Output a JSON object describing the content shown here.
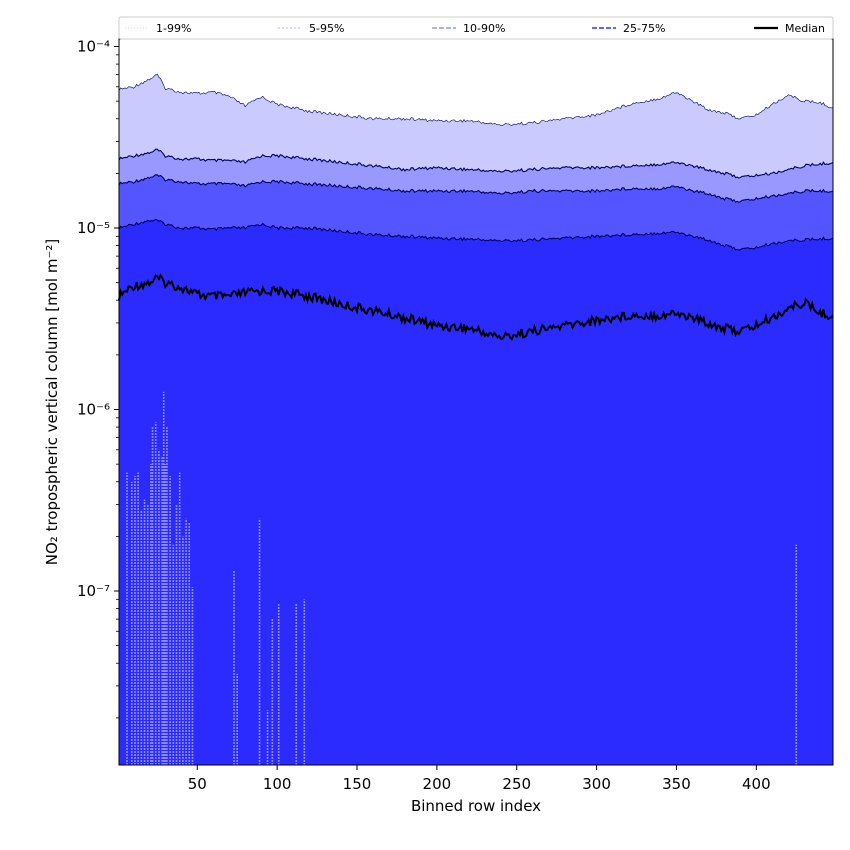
{
  "chart_data": {
    "type": "area",
    "xlabel": "Binned row index",
    "ylabel": "NO₂ tropospheric vertical column [mol m⁻²]",
    "yscale": "log",
    "xlim": [
      1,
      448
    ],
    "ylim": [
      1.1e-08,
      0.00011
    ],
    "x_ticks": [
      50,
      100,
      150,
      200,
      250,
      300,
      350,
      400
    ],
    "x_tick_labels": [
      "50",
      "100",
      "150",
      "200",
      "250",
      "300",
      "350",
      "400"
    ],
    "y_ticks": [
      1e-07,
      1e-06,
      1e-05,
      0.0001
    ],
    "y_tick_labels": [
      "10⁻⁷",
      "10⁻⁶",
      "10⁻⁵",
      "10⁻⁴"
    ],
    "grid": false,
    "legend_position": "top",
    "legend": [
      {
        "label": "1-99%",
        "style": "thin-dotted",
        "color": "#c8c8ff"
      },
      {
        "label": "5-95%",
        "style": "thin-dashed",
        "color": "#9999ff"
      },
      {
        "label": "10-90%",
        "style": "dashed",
        "color": "#7f7fff"
      },
      {
        "label": "25-75%",
        "style": "dashed",
        "color": "#3333ff"
      },
      {
        "label": "Median",
        "style": "solid",
        "color": "#000000"
      }
    ],
    "colors": {
      "band_1_99": "#2b2bff",
      "band_5_95": "#5555ff",
      "band_10_90": "#9898ff",
      "band_25_75": "#cacaff",
      "outer_fill": "#2b2bff",
      "median_line": "#000000",
      "band_edge": "#00005e",
      "low_spikes": "#8c8cff"
    },
    "x": [
      1,
      10,
      20,
      25,
      30,
      40,
      50,
      60,
      70,
      80,
      90,
      100,
      120,
      140,
      160,
      180,
      200,
      220,
      240,
      260,
      280,
      300,
      320,
      340,
      350,
      360,
      370,
      380,
      390,
      400,
      410,
      420,
      430,
      440,
      448
    ],
    "series": [
      {
        "name": "1-99%",
        "upper": [
          5.8e-05,
          6e-05,
          6.6e-05,
          7e-05,
          5.9e-05,
          5.6e-05,
          5.5e-05,
          5.6e-05,
          5.3e-05,
          4.7e-05,
          5.3e-05,
          4.8e-05,
          4.4e-05,
          4.2e-05,
          4e-05,
          4e-05,
          3.9e-05,
          3.9e-05,
          3.7e-05,
          3.8e-05,
          4e-05,
          4.2e-05,
          4.8e-05,
          5.2e-05,
          5.6e-05,
          5e-05,
          4.5e-05,
          4.3e-05,
          4e-05,
          4.2e-05,
          4.8e-05,
          5.4e-05,
          5e-05,
          4.9e-05,
          4.6e-05
        ]
      },
      {
        "name": "5-95%",
        "upper": [
          2.4e-05,
          2.5e-05,
          2.6e-05,
          2.7e-05,
          2.5e-05,
          2.4e-05,
          2.4e-05,
          2.35e-05,
          2.35e-05,
          2.3e-05,
          2.5e-05,
          2.5e-05,
          2.4e-05,
          2.3e-05,
          2.2e-05,
          2.1e-05,
          2.15e-05,
          2.1e-05,
          2.05e-05,
          2.1e-05,
          2.15e-05,
          2.15e-05,
          2.2e-05,
          2.25e-05,
          2.3e-05,
          2.2e-05,
          2.1e-05,
          2e-05,
          1.9e-05,
          1.95e-05,
          2e-05,
          2.1e-05,
          2.2e-05,
          2.25e-05,
          2.3e-05
        ]
      },
      {
        "name": "10-90%",
        "upper": [
          1.75e-05,
          1.8e-05,
          1.9e-05,
          1.95e-05,
          1.85e-05,
          1.8e-05,
          1.75e-05,
          1.75e-05,
          1.75e-05,
          1.7e-05,
          1.8e-05,
          1.8e-05,
          1.75e-05,
          1.7e-05,
          1.65e-05,
          1.6e-05,
          1.6e-05,
          1.6e-05,
          1.55e-05,
          1.6e-05,
          1.6e-05,
          1.6e-05,
          1.65e-05,
          1.65e-05,
          1.7e-05,
          1.6e-05,
          1.55e-05,
          1.45e-05,
          1.4e-05,
          1.45e-05,
          1.5e-05,
          1.55e-05,
          1.6e-05,
          1.6e-05,
          1.6e-05
        ]
      },
      {
        "name": "25-75%",
        "upper": [
          1e-05,
          1.05e-05,
          1.1e-05,
          1.1e-05,
          1.05e-05,
          1e-05,
          1e-05,
          9.8e-06,
          1e-05,
          1e-05,
          1.05e-05,
          1e-05,
          1e-05,
          9.6e-06,
          9.2e-06,
          9e-06,
          8.8e-06,
          8.7e-06,
          8.5e-06,
          8.6e-06,
          8.8e-06,
          9e-06,
          9.2e-06,
          9.4e-06,
          9.5e-06,
          9e-06,
          8.6e-06,
          8e-06,
          7.6e-06,
          7.8e-06,
          8.2e-06,
          8.5e-06,
          8.6e-06,
          8.7e-06,
          8.8e-06
        ]
      },
      {
        "name": "Median",
        "values": [
          4.2e-06,
          4.8e-06,
          5e-06,
          5.3e-06,
          5e-06,
          4.7e-06,
          4.3e-06,
          4.2e-06,
          4.2e-06,
          4.4e-06,
          4.5e-06,
          4.5e-06,
          4.2e-06,
          3.8e-06,
          3.5e-06,
          3.2e-06,
          2.9e-06,
          2.8e-06,
          2.5e-06,
          2.7e-06,
          2.9e-06,
          3.1e-06,
          3.3e-06,
          3.3e-06,
          3.4e-06,
          3.2e-06,
          3e-06,
          2.8e-06,
          2.7e-06,
          2.9e-06,
          3.2e-06,
          3.6e-06,
          3.9e-06,
          3.4e-06,
          3.3e-06
        ]
      }
    ],
    "low_spikes": [
      {
        "x": 6,
        "y": 4.5e-07
      },
      {
        "x": 9,
        "y": 4e-07
      },
      {
        "x": 11,
        "y": 4.3e-07
      },
      {
        "x": 13,
        "y": 4.5e-07
      },
      {
        "x": 15,
        "y": 2.8e-07
      },
      {
        "x": 17,
        "y": 3.2e-07
      },
      {
        "x": 19,
        "y": 3e-07
      },
      {
        "x": 21,
        "y": 5e-07
      },
      {
        "x": 22,
        "y": 8e-07
      },
      {
        "x": 24,
        "y": 8.5e-07
      },
      {
        "x": 26,
        "y": 6e-07
      },
      {
        "x": 28,
        "y": 5.5e-07
      },
      {
        "x": 29,
        "y": 1.25e-06
      },
      {
        "x": 30,
        "y": 5e-07
      },
      {
        "x": 31,
        "y": 8e-07
      },
      {
        "x": 33,
        "y": 4.3e-07
      },
      {
        "x": 35,
        "y": 1.8e-07
      },
      {
        "x": 37,
        "y": 3e-07
      },
      {
        "x": 39,
        "y": 4.5e-07
      },
      {
        "x": 41,
        "y": 2e-07
      },
      {
        "x": 43,
        "y": 2.5e-07
      },
      {
        "x": 45,
        "y": 2.4e-07
      },
      {
        "x": 47,
        "y": 1.05e-07
      },
      {
        "x": 73,
        "y": 1.3e-07
      },
      {
        "x": 75,
        "y": 3.5e-08
      },
      {
        "x": 89,
        "y": 2.5e-07
      },
      {
        "x": 94,
        "y": 2.2e-08
      },
      {
        "x": 97,
        "y": 7e-08
      },
      {
        "x": 101,
        "y": 8.5e-08
      },
      {
        "x": 112,
        "y": 8.5e-08
      },
      {
        "x": 117,
        "y": 9e-08
      },
      {
        "x": 425,
        "y": 1.8e-07
      }
    ]
  }
}
